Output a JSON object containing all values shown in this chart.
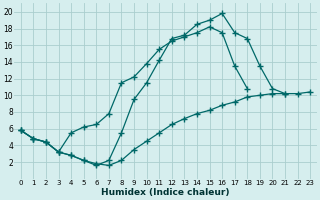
{
  "bg_color": "#d6eeee",
  "grid_color": "#aacece",
  "line_color": "#006868",
  "xlabel": "Humidex (Indice chaleur)",
  "xlim": [
    -0.5,
    23.5
  ],
  "ylim": [
    0,
    21
  ],
  "yticks": [
    2,
    4,
    6,
    8,
    10,
    12,
    14,
    16,
    18,
    20
  ],
  "xticks": [
    0,
    1,
    2,
    3,
    4,
    5,
    6,
    7,
    8,
    9,
    10,
    11,
    12,
    13,
    14,
    15,
    16,
    17,
    18,
    19,
    20,
    21,
    22,
    23
  ],
  "line1_x": [
    0,
    1,
    2,
    3,
    4,
    5,
    6,
    7,
    8,
    9,
    10,
    11,
    12,
    13,
    14,
    15,
    16,
    17,
    18,
    19,
    20,
    21
  ],
  "line1_y": [
    5.8,
    4.8,
    4.4,
    3.2,
    2.8,
    2.2,
    1.6,
    2.2,
    5.5,
    9.5,
    11.5,
    14.2,
    16.8,
    17.2,
    18.5,
    19.0,
    19.8,
    17.5,
    16.8,
    13.5,
    10.8,
    10.2
  ],
  "line2_x": [
    0,
    1,
    2,
    3,
    4,
    5,
    6,
    7,
    8,
    9,
    10,
    11,
    12,
    13,
    14,
    15,
    16,
    17,
    18
  ],
  "line2_y": [
    5.8,
    4.8,
    4.4,
    3.2,
    5.5,
    6.2,
    6.5,
    7.8,
    11.5,
    12.2,
    13.8,
    15.5,
    16.5,
    17.0,
    17.5,
    18.2,
    17.5,
    13.5,
    10.8
  ],
  "line3_x": [
    0,
    1,
    2,
    3,
    4,
    5,
    6,
    7,
    8,
    9,
    10,
    11,
    12,
    13,
    14,
    15,
    16,
    17,
    18,
    19,
    20,
    21,
    22,
    23
  ],
  "line3_y": [
    5.8,
    4.8,
    4.4,
    3.2,
    2.8,
    2.2,
    1.8,
    1.6,
    2.2,
    3.5,
    4.5,
    5.5,
    6.5,
    7.2,
    7.8,
    8.2,
    8.8,
    9.2,
    9.8,
    10.0,
    10.2,
    10.2,
    10.2,
    10.4
  ]
}
